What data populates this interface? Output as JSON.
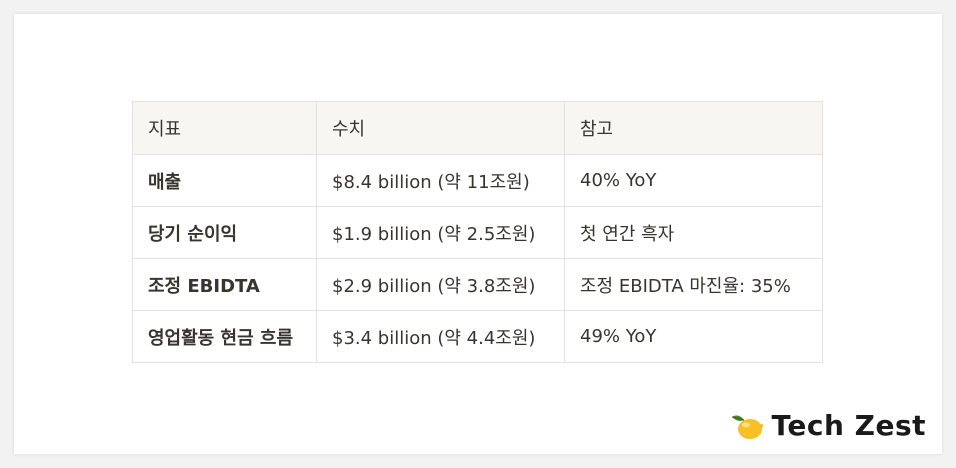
{
  "table": {
    "headers": [
      "지표",
      "수치",
      "참고"
    ],
    "rows": [
      {
        "metric": "매출",
        "value": "$8.4 billion (약 11조원)",
        "note": "40% YoY"
      },
      {
        "metric": "당기 순이익",
        "value": "$1.9 billion (약 2.5조원)",
        "note": "첫 연간 흑자"
      },
      {
        "metric": "조정 EBIDTA",
        "value": "$2.9 billion (약 3.8조원)",
        "note": "조정 EBIDTA 마진율: 35%"
      },
      {
        "metric": "영업활동 현금 흐름",
        "value": "$3.4 billion (약 4.4조원)",
        "note": "49% YoY"
      }
    ]
  },
  "brand": {
    "name": "Tech Zest",
    "icon": "lemon-icon"
  }
}
